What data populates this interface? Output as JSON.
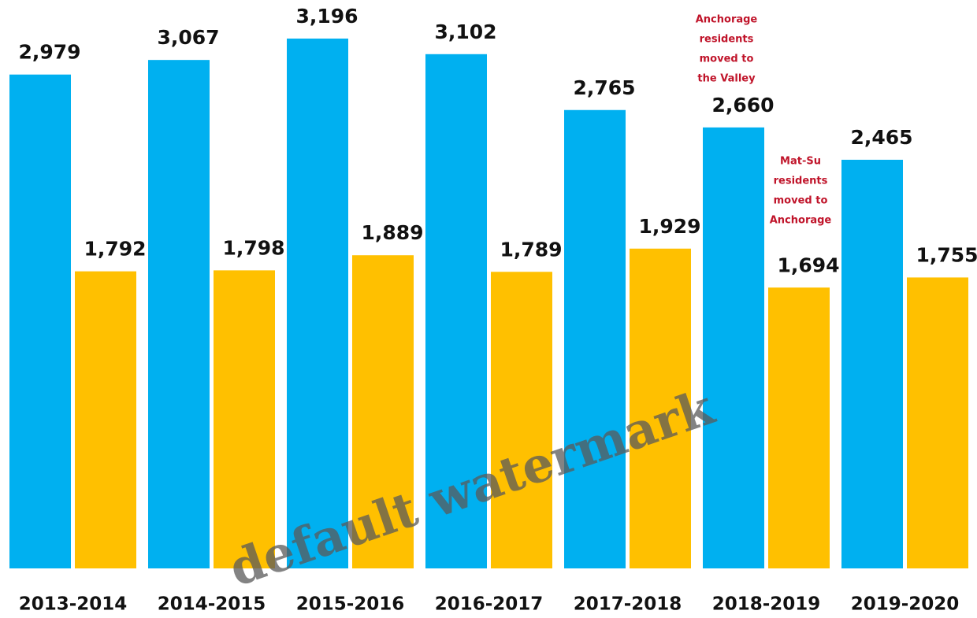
{
  "chart_data": {
    "type": "bar",
    "categories": [
      "2013-2014",
      "2014-2015",
      "2015-2016",
      "2016-2017",
      "2017-2018",
      "2018-2019",
      "2019-2020"
    ],
    "series": [
      {
        "color": "#00b0f0",
        "values": [
          2979,
          3067,
          3196,
          3102,
          2765,
          2660,
          2465
        ],
        "value_labels": [
          "2,979",
          "3,067",
          "3,196",
          "3,102",
          "2,765",
          "2,660",
          "2,465"
        ]
      },
      {
        "color": "#ffc000",
        "values": [
          1792,
          1798,
          1889,
          1789,
          1929,
          1694,
          1755
        ],
        "value_labels": [
          "1,792",
          "1,798",
          "1,889",
          "1,789",
          "1,929",
          "1,694",
          "1,755"
        ]
      }
    ],
    "annotations": [
      [
        "Anchorage",
        "residents",
        "moved to",
        "the Valley"
      ],
      [
        "Mat-Su",
        "residents",
        "moved to",
        "Anchorage"
      ]
    ],
    "watermark": "default watermark"
  }
}
